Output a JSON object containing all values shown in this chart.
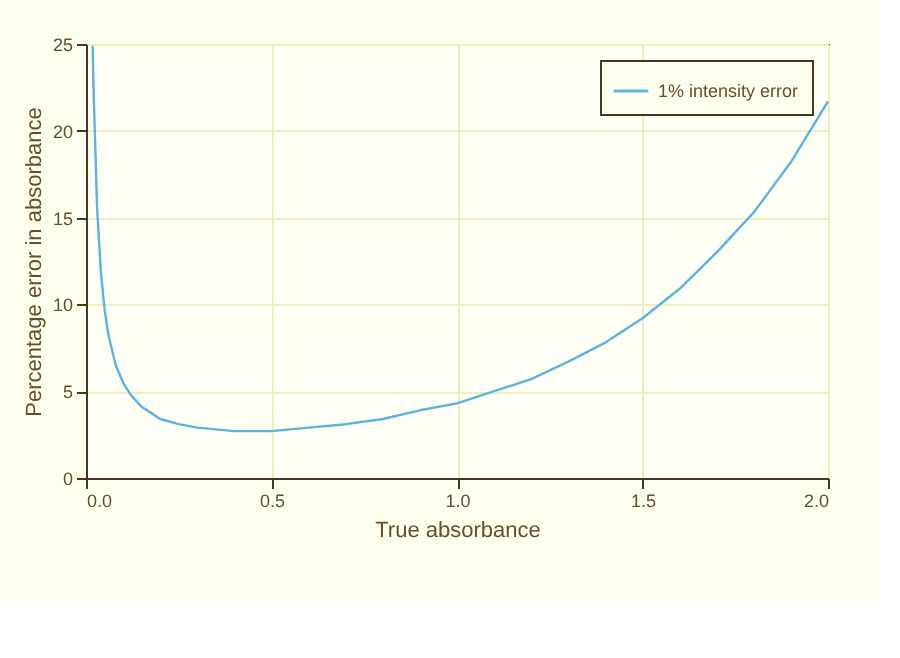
{
  "chart_data": {
    "type": "line",
    "xlabel": "True absorbance",
    "ylabel": "Percentage error in absorbance",
    "x": [
      0.018,
      0.02,
      0.03,
      0.04,
      0.05,
      0.06,
      0.08,
      0.1,
      0.12,
      0.15,
      0.2,
      0.25,
      0.3,
      0.35,
      0.4,
      0.45,
      0.5,
      0.6,
      0.7,
      0.8,
      0.9,
      1.0,
      1.1,
      1.2,
      1.3,
      1.4,
      1.5,
      1.6,
      1.7,
      1.8,
      1.9,
      2.0
    ],
    "series": [
      {
        "name": "1% intensity error",
        "color": "#5ab4e0",
        "values": [
          24.9,
          22.7,
          15.5,
          11.9,
          9.7,
          8.3,
          6.5,
          5.5,
          4.8,
          4.1,
          3.4,
          3.1,
          2.9,
          2.8,
          2.7,
          2.7,
          2.7,
          2.9,
          3.1,
          3.4,
          3.9,
          4.3,
          5.0,
          5.7,
          6.7,
          7.8,
          9.2,
          10.9,
          13.0,
          15.3,
          18.2,
          21.7
        ]
      }
    ],
    "xlim": [
      0,
      2
    ],
    "ylim": [
      0,
      25
    ],
    "xticks": [
      {
        "value": 0,
        "label": "0.0"
      },
      0.5,
      {
        "value": 1,
        "label": "1.0"
      },
      1.5,
      {
        "value": 2,
        "label": "2.0"
      }
    ],
    "yticks": [
      0,
      5,
      10,
      15,
      20,
      25
    ],
    "grid": true,
    "legend": "top right",
    "line_style": "solid",
    "marker": "none"
  }
}
